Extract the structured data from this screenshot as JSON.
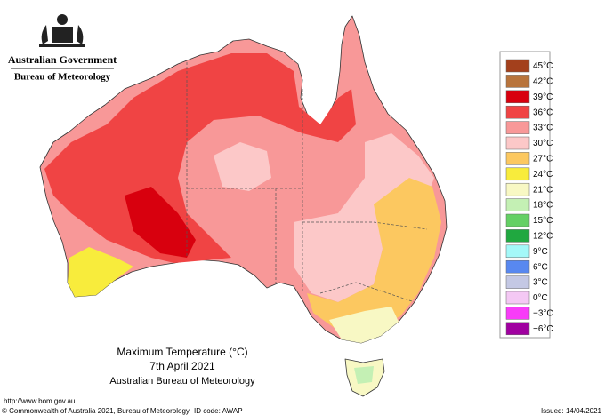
{
  "header": {
    "government": "Australian Government",
    "agency": "Bureau of Meteorology"
  },
  "map": {
    "title": "Maximum Temperature (°C)",
    "date": "7th April 2021",
    "source": "Australian Bureau of Meteorology"
  },
  "legend": [
    {
      "label": "45°C",
      "color": "#a3401c"
    },
    {
      "label": "42°C",
      "color": "#b8743c"
    },
    {
      "label": "39°C",
      "color": "#d8000e"
    },
    {
      "label": "36°C",
      "color": "#f04444"
    },
    {
      "label": "33°C",
      "color": "#f89898"
    },
    {
      "label": "30°C",
      "color": "#fcc8c8"
    },
    {
      "label": "27°C",
      "color": "#fcc860"
    },
    {
      "label": "24°C",
      "color": "#f8ec3c"
    },
    {
      "label": "21°C",
      "color": "#f8f8c4"
    },
    {
      "label": "18°C",
      "color": "#c4f0b4"
    },
    {
      "label": "15°C",
      "color": "#64d064"
    },
    {
      "label": "12°C",
      "color": "#20a840"
    },
    {
      "label": "9°C",
      "color": "#a4f8f8"
    },
    {
      "label": "6°C",
      "color": "#5888f0"
    },
    {
      "label": "3°C",
      "color": "#c4c8e4"
    },
    {
      "label": "0°C",
      "color": "#f4c8f4"
    },
    {
      "label": "−3°C",
      "color": "#f83cf8"
    },
    {
      "label": "−6°C",
      "color": "#a000a0"
    }
  ],
  "footer": {
    "url": "http://www.bom.gov.au",
    "copyright": "© Commonwealth of Australia 2021, Bureau of Meteorology",
    "id_code": "ID code: AWAP",
    "issued": "Issued: 14/04/2021"
  }
}
